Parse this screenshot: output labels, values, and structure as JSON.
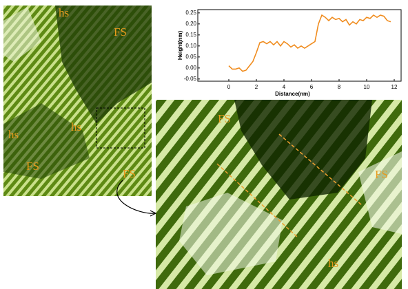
{
  "chart_data": {
    "type": "line",
    "x_label": "Distance(nm)",
    "y_label": "Height(nm)",
    "x": [
      0,
      0.25,
      0.5,
      0.75,
      1.0,
      1.25,
      1.5,
      1.75,
      2.0,
      2.25,
      2.5,
      2.75,
      3.0,
      3.25,
      3.5,
      3.75,
      4.0,
      4.25,
      4.5,
      4.75,
      5.0,
      5.25,
      5.5,
      5.75,
      6.0,
      6.25,
      6.5,
      6.75,
      7.0,
      7.25,
      7.5,
      7.75,
      8.0,
      8.25,
      8.5,
      8.75,
      9.0,
      9.25,
      9.5,
      9.75,
      10.0,
      10.25,
      10.5,
      10.75,
      11.0,
      11.25,
      11.5,
      11.75
    ],
    "series": [
      {
        "color": "#f08c1e",
        "values": [
          0.01,
          -0.005,
          -0.005,
          0.0,
          -0.015,
          -0.01,
          0.01,
          0.03,
          0.07,
          0.115,
          0.12,
          0.11,
          0.12,
          0.105,
          0.12,
          0.1,
          0.12,
          0.11,
          0.095,
          0.105,
          0.09,
          0.1,
          0.09,
          0.1,
          0.11,
          0.12,
          0.2,
          0.24,
          0.23,
          0.215,
          0.23,
          0.22,
          0.225,
          0.21,
          0.22,
          0.195,
          0.21,
          0.2,
          0.22,
          0.215,
          0.23,
          0.225,
          0.24,
          0.23,
          0.24,
          0.235,
          0.215,
          0.21
        ]
      }
    ],
    "xlim": [
      -2.25,
      12.5
    ],
    "ylim": [
      -0.06,
      0.265
    ],
    "xticks": [
      0,
      2,
      4,
      6,
      8,
      10,
      12
    ],
    "yticks": [
      -0.05,
      {
        "value": 0,
        "label": "0.00"
      },
      0.05,
      {
        "value": 0.1,
        "label": "0.10"
      },
      0.15,
      {
        "value": 0.2,
        "label": "0.20"
      },
      0.25
    ]
  },
  "annotations": {
    "overview": [
      "hs",
      "FS",
      "hs",
      "hs",
      "FS",
      "FS"
    ],
    "zoom": [
      "FS",
      "FS",
      "hs"
    ]
  }
}
